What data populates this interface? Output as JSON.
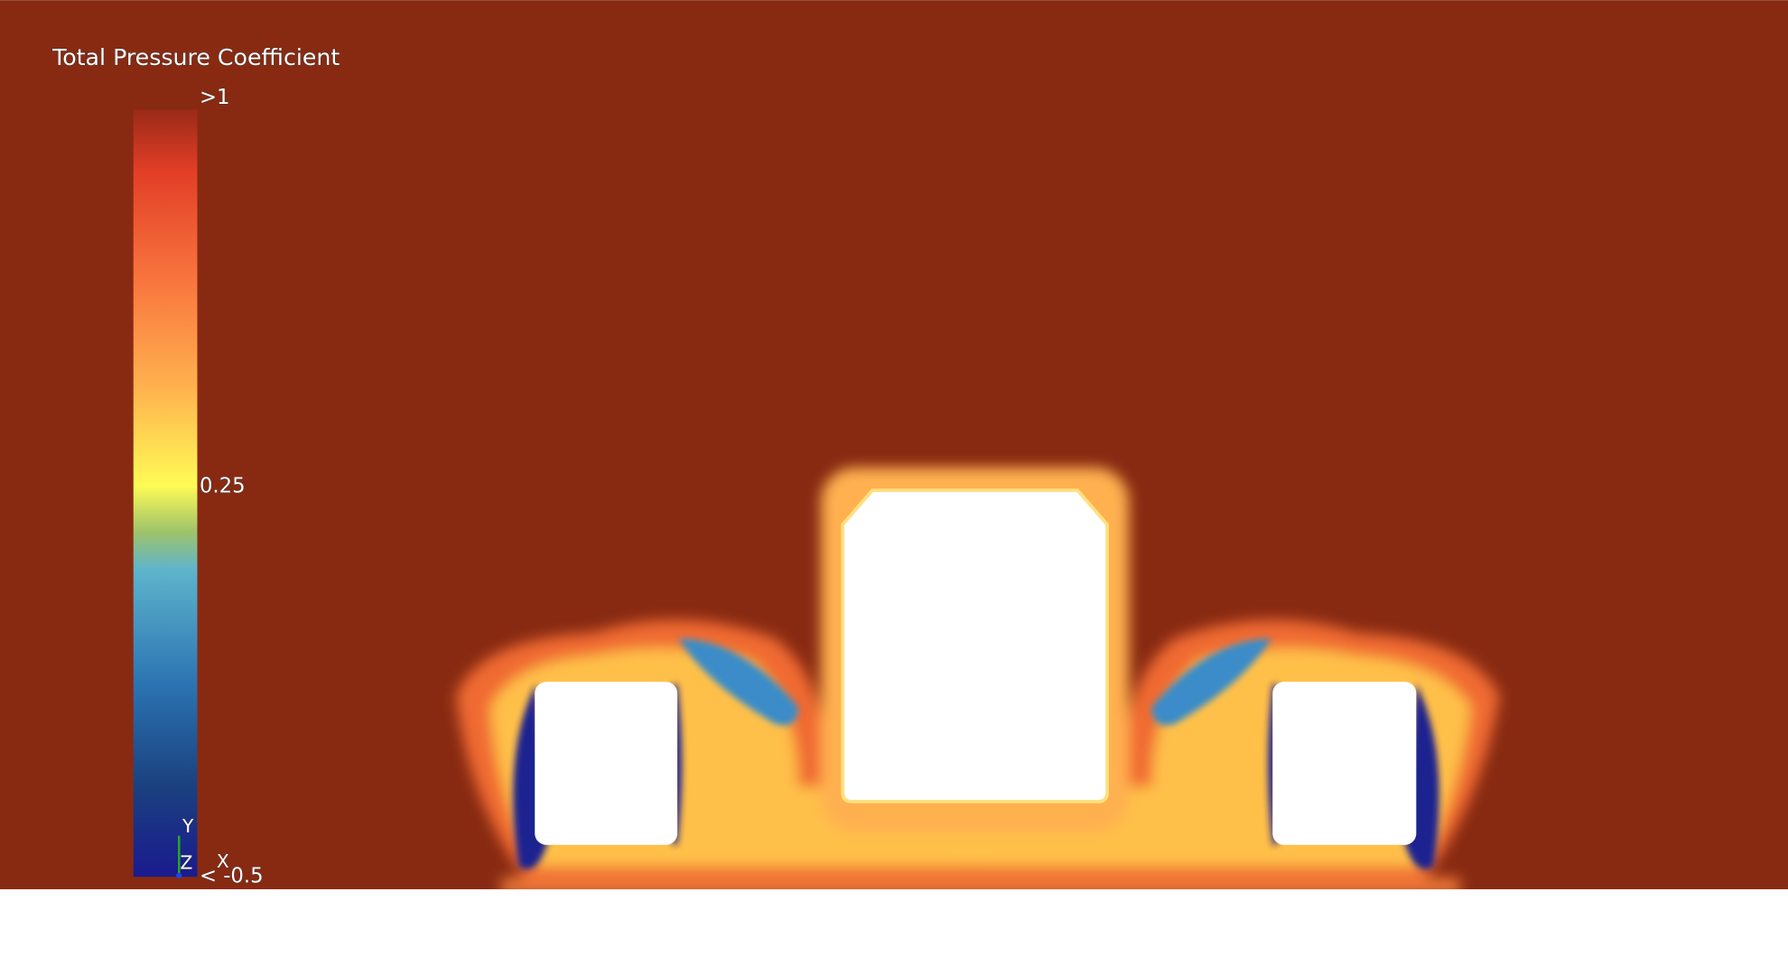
{
  "title": "Total Pressure Coefficient",
  "colorbar": {
    "labels": [
      ">1",
      "0.25",
      "< -0.5"
    ]
  },
  "axes_triad": {
    "y": "Y",
    "z": "Z",
    "x": "X"
  }
}
